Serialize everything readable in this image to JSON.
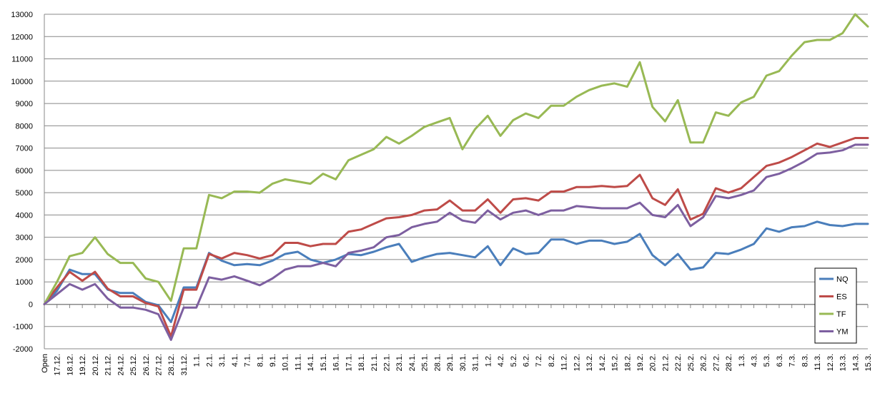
{
  "chart_data": {
    "type": "line",
    "title": "",
    "xlabel": "",
    "ylabel": "",
    "ylim": [
      -2000,
      13000
    ],
    "yticks": [
      -2000,
      -1000,
      0,
      1000,
      2000,
      3000,
      4000,
      5000,
      6000,
      7000,
      8000,
      9000,
      10000,
      11000,
      12000,
      13000
    ],
    "grid": "horizontal",
    "legend_position": "bottom-right",
    "categories": [
      "Open",
      "17.12.",
      "18.12.",
      "19.12.",
      "20.12.",
      "21.12.",
      "24.12.",
      "25.12.",
      "26.12.",
      "27.12.",
      "28.12.",
      "31.12.",
      "1.1.",
      "2.1.",
      "3.1.",
      "4.1.",
      "7.1.",
      "8.1.",
      "9.1.",
      "10.1.",
      "11.1.",
      "14.1.",
      "15.1.",
      "16.1.",
      "17.1.",
      "18.1.",
      "21.1.",
      "22.1.",
      "23.1.",
      "24.1.",
      "25.1.",
      "28.1.",
      "29.1.",
      "30.1.",
      "31.1.",
      "1.2.",
      "4.2.",
      "5.2.",
      "6.2.",
      "7.2.",
      "8.2.",
      "11.2.",
      "12.2.",
      "13.2.",
      "14.2.",
      "15.2.",
      "18.2.",
      "19.2.",
      "20.2.",
      "21.2.",
      "22.2.",
      "25.2.",
      "26.2.",
      "27.2.",
      "28.2.",
      "1.3.",
      "4.3.",
      "5.3.",
      "6.3.",
      "7.3.",
      "8.3.",
      "11.3.",
      "12.3.",
      "13.3.",
      "14.3.",
      "15.3."
    ],
    "series": [
      {
        "name": "NQ",
        "color": "#4a7ebb",
        "values": [
          0,
          600,
          1550,
          1350,
          1350,
          650,
          500,
          500,
          100,
          -50,
          -800,
          750,
          750,
          2300,
          1950,
          1750,
          1800,
          1750,
          1950,
          2250,
          2350,
          2000,
          1850,
          2000,
          2250,
          2200,
          2350,
          2550,
          2700,
          1900,
          2100,
          2250,
          2300,
          2200,
          2100,
          2600,
          1750,
          2500,
          2250,
          2300,
          2900,
          2900,
          2700,
          2850,
          2850,
          2700,
          2800,
          3150,
          2200,
          1750,
          2250,
          1550,
          1650,
          2300,
          2250,
          2450,
          2700,
          3400,
          3250,
          3450,
          3500,
          3700,
          3550,
          3500,
          3600,
          3600
        ]
      },
      {
        "name": "ES",
        "color": "#be4b48",
        "values": [
          0,
          750,
          1450,
          1050,
          1450,
          700,
          350,
          350,
          50,
          -100,
          -1450,
          650,
          650,
          2250,
          2050,
          2300,
          2200,
          2050,
          2200,
          2750,
          2750,
          2600,
          2700,
          2700,
          3250,
          3350,
          3600,
          3850,
          3900,
          4000,
          4200,
          4250,
          4650,
          4200,
          4200,
          4700,
          4100,
          4700,
          4750,
          4650,
          5050,
          5050,
          5250,
          5250,
          5300,
          5250,
          5300,
          5800,
          4750,
          4450,
          5150,
          3800,
          4050,
          5200,
          5000,
          5200,
          5700,
          6200,
          6350,
          6600,
          6900,
          7200,
          7050,
          7250,
          7450,
          7450
        ]
      },
      {
        "name": "TF",
        "color": "#98b954",
        "values": [
          0,
          1000,
          2150,
          2300,
          3000,
          2250,
          1850,
          1850,
          1150,
          1000,
          150,
          2500,
          2500,
          4900,
          4750,
          5050,
          5050,
          5000,
          5400,
          5600,
          5500,
          5400,
          5850,
          5600,
          6450,
          6700,
          6950,
          7500,
          7200,
          7550,
          7950,
          8150,
          8350,
          6950,
          7850,
          8450,
          7550,
          8250,
          8550,
          8350,
          8900,
          8900,
          9300,
          9600,
          9800,
          9900,
          9750,
          10850,
          8850,
          8200,
          9150,
          7250,
          7250,
          8600,
          8450,
          9050,
          9300,
          10250,
          10450,
          11150,
          11750,
          11850,
          11850,
          12150,
          13000,
          12450
        ]
      },
      {
        "name": "YM",
        "color": "#7d5fa0",
        "values": [
          0,
          450,
          900,
          650,
          900,
          250,
          -150,
          -150,
          -250,
          -450,
          -1600,
          -150,
          -150,
          1200,
          1100,
          1250,
          1050,
          850,
          1150,
          1550,
          1700,
          1700,
          1850,
          1700,
          2300,
          2400,
          2550,
          3000,
          3100,
          3450,
          3600,
          3700,
          4100,
          3750,
          3650,
          4200,
          3800,
          4100,
          4200,
          4000,
          4200,
          4200,
          4400,
          4350,
          4300,
          4300,
          4300,
          4550,
          4000,
          3900,
          4450,
          3500,
          3900,
          4850,
          4750,
          4900,
          5100,
          5700,
          5850,
          6100,
          6400,
          6750,
          6800,
          6900,
          7150,
          7150
        ]
      }
    ]
  }
}
